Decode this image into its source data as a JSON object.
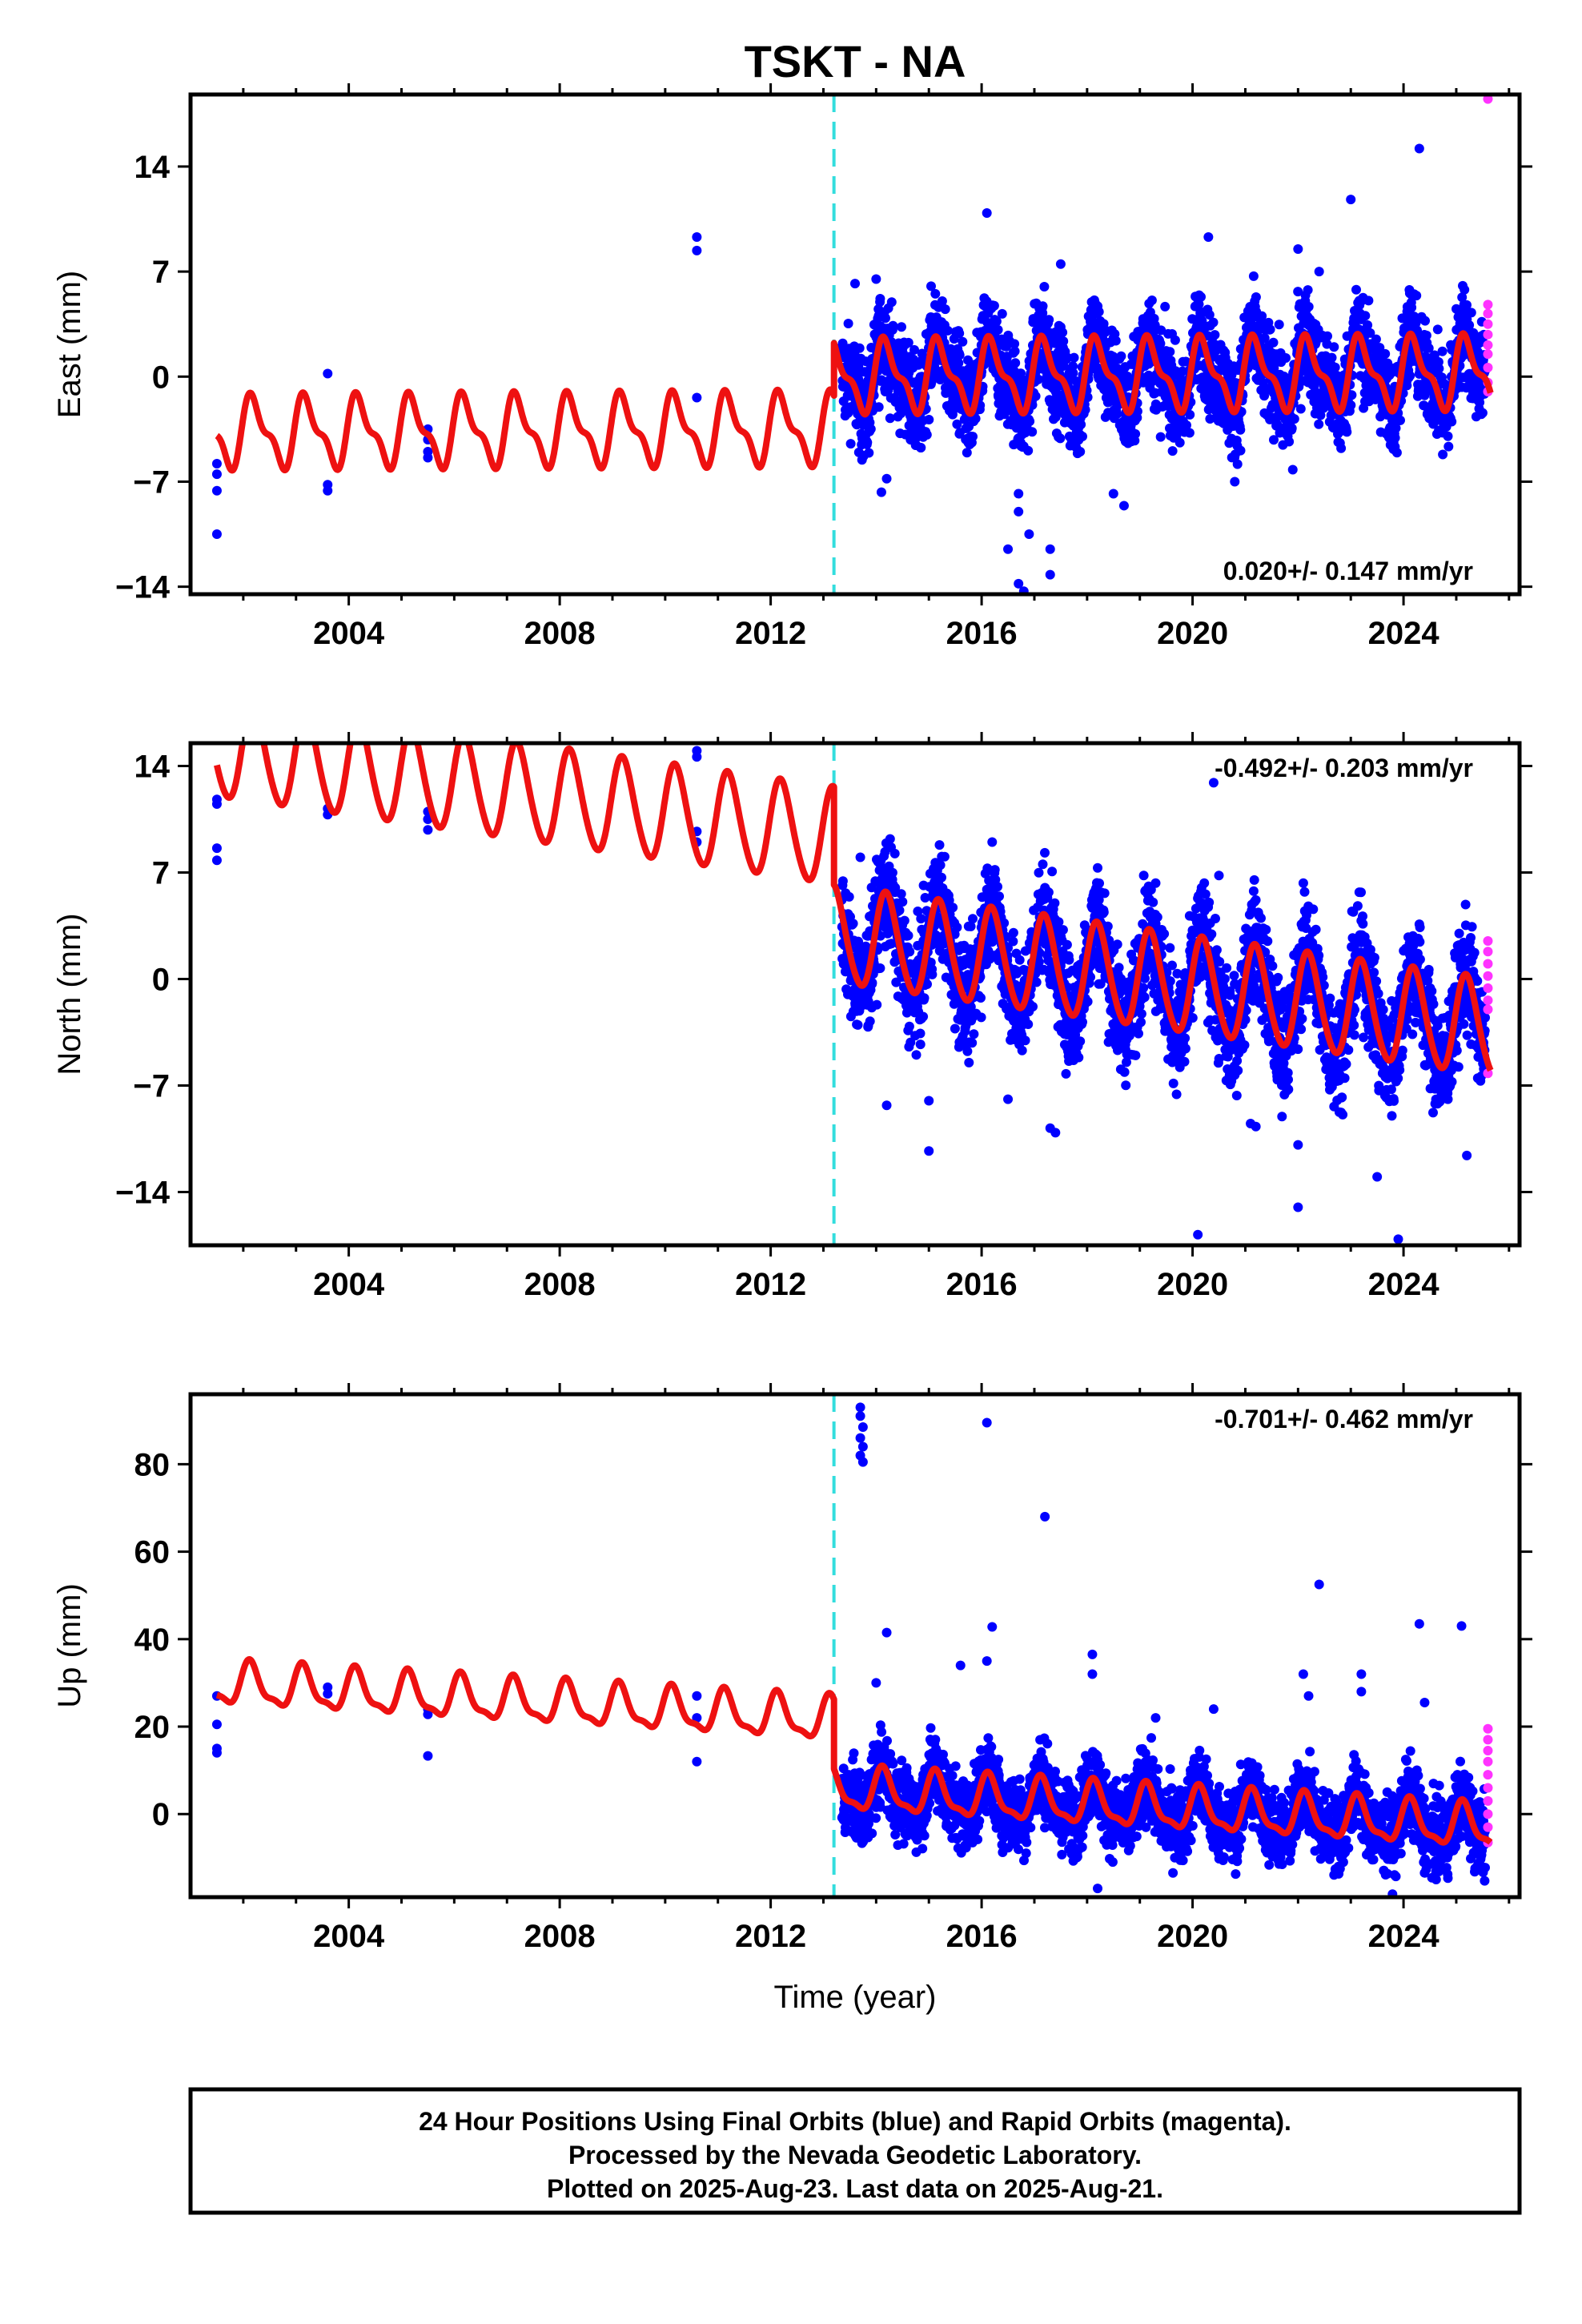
{
  "title": "TSKT - NA",
  "xlabel": "Time (year)",
  "footer": [
    "24 Hour Positions Using Final Orbits (blue) and Rapid Orbits (magenta).",
    "Processed by the Nevada Geodetic Laboratory.",
    "Plotted on 2025-Aug-23. Last data on 2025-Aug-21."
  ],
  "colors": {
    "final": "#0000ff",
    "rapid": "#ff33ff",
    "model": "#ee1111",
    "break": "#33dddd",
    "frame": "#000000"
  },
  "chart_data": [
    {
      "type": "scatter",
      "component": "East",
      "ylabel": "East (mm)",
      "rate_text": "0.020+/- 0.147 mm/yr",
      "rate_position": "bottom-right",
      "xlim": [
        2001.0,
        2026.2
      ],
      "ylim": [
        -14.5,
        18.8
      ],
      "xticks": [
        2004,
        2008,
        2012,
        2016,
        2020,
        2024
      ],
      "yticks": [
        -14,
        -7,
        0,
        7,
        14
      ],
      "break_epoch": 2013.2,
      "model": {
        "t_start": 2001.5,
        "t_end": 2025.65,
        "pre_offset": -3.5,
        "post_offset": 0.0,
        "trend_mm_per_yr": 0.02,
        "annual_sin": 2.0,
        "annual_cos": 0.6,
        "semiannual_sin": 0.8,
        "semiannual_cos": 0.4
      },
      "early_points": [
        [
          2001.5,
          -10.5
        ],
        [
          2001.5,
          -7.6
        ],
        [
          2001.5,
          -6.5
        ],
        [
          2001.5,
          -5.8
        ],
        [
          2003.6,
          0.2
        ],
        [
          2003.6,
          -7.2
        ],
        [
          2003.6,
          -7.6
        ],
        [
          2005.5,
          -3.5
        ],
        [
          2005.5,
          -4.2
        ],
        [
          2005.5,
          -5.0
        ],
        [
          2005.5,
          -5.4
        ],
        [
          2010.6,
          9.3
        ],
        [
          2010.6,
          8.4
        ],
        [
          2010.6,
          -1.4
        ]
      ],
      "dense": {
        "t_start": 2013.35,
        "t_end": 2025.55,
        "step": 0.0042,
        "scatter_sd": 1.6
      },
      "outliers": [
        [
          2013.6,
          6.2
        ],
        [
          2014.0,
          6.5
        ],
        [
          2014.1,
          -7.7
        ],
        [
          2014.2,
          -6.8
        ],
        [
          2016.1,
          10.9
        ],
        [
          2016.5,
          -11.5
        ],
        [
          2016.7,
          -13.8
        ],
        [
          2016.8,
          -14.3
        ],
        [
          2016.7,
          -9.0
        ],
        [
          2016.9,
          -10.5
        ],
        [
          2016.7,
          -7.8
        ],
        [
          2017.3,
          -11.5
        ],
        [
          2017.3,
          -13.2
        ],
        [
          2017.5,
          7.5
        ],
        [
          2018.7,
          -8.6
        ],
        [
          2018.5,
          -7.8
        ],
        [
          2020.3,
          9.3
        ],
        [
          2020.8,
          -7.0
        ],
        [
          2022.0,
          8.5
        ],
        [
          2022.4,
          7.0
        ],
        [
          2023.0,
          11.8
        ],
        [
          2024.3,
          15.2
        ],
        [
          2024.2,
          5.5
        ],
        [
          2021.9,
          -6.2
        ]
      ],
      "rapid_points": [
        [
          2025.6,
          18.5
        ],
        [
          2025.6,
          4.8
        ],
        [
          2025.6,
          4.2
        ],
        [
          2025.6,
          3.5
        ],
        [
          2025.6,
          2.8
        ],
        [
          2025.6,
          2.1
        ],
        [
          2025.6,
          1.5
        ],
        [
          2025.6,
          0.6
        ],
        [
          2025.6,
          -0.4
        ],
        [
          2025.6,
          -1.0
        ]
      ]
    },
    {
      "type": "scatter",
      "component": "North",
      "ylabel": "North (mm)",
      "rate_text": "-0.492+/- 0.203 mm/yr",
      "rate_position": "top-right",
      "xlim": [
        2001.0,
        2026.2
      ],
      "ylim": [
        -17.5,
        15.5
      ],
      "xticks": [
        2004,
        2008,
        2012,
        2016,
        2020,
        2024
      ],
      "yticks": [
        -14,
        -7,
        0,
        7,
        14
      ],
      "break_epoch": 2013.2,
      "model": {
        "t_start": 2001.5,
        "t_end": 2025.65,
        "pre_offset": 9.3,
        "post_offset": 2.85,
        "trend_mm_per_yr": -0.492,
        "annual_sin": 3.0,
        "annual_cos": 1.0,
        "semiannual_sin": 0.3,
        "semiannual_cos": 0.0
      },
      "early_points": [
        [
          2001.5,
          11.8
        ],
        [
          2001.5,
          11.5
        ],
        [
          2001.5,
          8.6
        ],
        [
          2001.5,
          7.8
        ],
        [
          2003.6,
          11.2
        ],
        [
          2003.6,
          10.8
        ],
        [
          2005.5,
          11.0
        ],
        [
          2005.5,
          10.5
        ],
        [
          2005.5,
          9.8
        ],
        [
          2010.6,
          15.0
        ],
        [
          2010.6,
          14.6
        ],
        [
          2010.6,
          9.7
        ],
        [
          2010.6,
          9.0
        ]
      ],
      "dense": {
        "t_start": 2013.35,
        "t_end": 2025.55,
        "step": 0.0042,
        "scatter_sd": 1.8
      },
      "outliers": [
        [
          2013.7,
          8.0
        ],
        [
          2014.2,
          -8.3
        ],
        [
          2015.0,
          -8.0
        ],
        [
          2015.0,
          -11.3
        ],
        [
          2016.5,
          -7.9
        ],
        [
          2017.3,
          -9.8
        ],
        [
          2017.4,
          -10.1
        ],
        [
          2020.1,
          -16.8
        ],
        [
          2020.4,
          12.9
        ],
        [
          2021.1,
          -9.5
        ],
        [
          2021.2,
          -9.7
        ],
        [
          2022.0,
          -10.9
        ],
        [
          2022.0,
          -15.0
        ],
        [
          2022.1,
          6.3
        ],
        [
          2023.5,
          -13.0
        ],
        [
          2023.9,
          -17.1
        ],
        [
          2024.6,
          -8.2
        ],
        [
          2025.2,
          -11.6
        ],
        [
          2024.3,
          3.6
        ],
        [
          2023.2,
          2.4
        ],
        [
          2016.2,
          9.0
        ],
        [
          2018.2,
          7.3
        ],
        [
          2019.3,
          6.3
        ],
        [
          2020.5,
          6.8
        ]
      ],
      "rapid_points": [
        [
          2025.6,
          2.5
        ],
        [
          2025.6,
          1.8
        ],
        [
          2025.6,
          1.0
        ],
        [
          2025.6,
          0.2
        ],
        [
          2025.6,
          -0.6
        ],
        [
          2025.6,
          -1.4
        ],
        [
          2025.6,
          -2.0
        ],
        [
          2025.6,
          -6.2
        ]
      ]
    },
    {
      "type": "scatter",
      "component": "Up",
      "ylabel": "Up (mm)",
      "rate_text": "-0.701+/- 0.462 mm/yr",
      "rate_position": "top-right",
      "xlim": [
        2001.0,
        2026.2
      ],
      "ylim": [
        -19.0,
        96.0
      ],
      "xticks": [
        2004,
        2008,
        2012,
        2016,
        2020,
        2024
      ],
      "yticks": [
        0,
        20,
        40,
        60,
        80
      ],
      "break_epoch": 2013.2,
      "model": {
        "t_start": 2001.5,
        "t_end": 2025.65,
        "pre_offset": 21.5,
        "post_offset": 5.6,
        "trend_mm_per_yr": -0.701,
        "annual_sin": 3.5,
        "annual_cos": 3.0,
        "semiannual_sin": 1.5,
        "semiannual_cos": 0.5
      },
      "early_points": [
        [
          2001.5,
          27.0
        ],
        [
          2001.5,
          20.5
        ],
        [
          2001.5,
          15.0
        ],
        [
          2001.5,
          14.0
        ],
        [
          2003.6,
          29.0
        ],
        [
          2003.6,
          27.5
        ],
        [
          2005.5,
          24.0
        ],
        [
          2005.5,
          22.8
        ],
        [
          2005.5,
          13.3
        ],
        [
          2010.6,
          27.0
        ],
        [
          2010.6,
          22.0
        ],
        [
          2010.6,
          12.0
        ]
      ],
      "dense": {
        "t_start": 2013.35,
        "t_end": 2025.55,
        "step": 0.0042,
        "scatter_sd": 4.2
      },
      "outliers": [
        [
          2013.7,
          93.0
        ],
        [
          2013.7,
          91.0
        ],
        [
          2013.75,
          88.5
        ],
        [
          2013.7,
          86.0
        ],
        [
          2013.75,
          84.0
        ],
        [
          2013.7,
          82.0
        ],
        [
          2013.75,
          80.5
        ],
        [
          2014.0,
          30.0
        ],
        [
          2014.2,
          41.5
        ],
        [
          2015.6,
          34.0
        ],
        [
          2016.1,
          89.5
        ],
        [
          2016.2,
          42.8
        ],
        [
          2016.1,
          35.0
        ],
        [
          2017.2,
          68.0
        ],
        [
          2018.1,
          36.5
        ],
        [
          2018.1,
          32.0
        ],
        [
          2018.2,
          -17.0
        ],
        [
          2022.1,
          32.0
        ],
        [
          2022.2,
          27.0
        ],
        [
          2022.4,
          52.5
        ],
        [
          2023.2,
          32.0
        ],
        [
          2023.2,
          28.0
        ],
        [
          2024.3,
          43.5
        ],
        [
          2024.4,
          25.5
        ],
        [
          2025.1,
          43.0
        ],
        [
          2020.4,
          24.0
        ],
        [
          2019.3,
          22.0
        ]
      ],
      "rapid_points": [
        [
          2025.6,
          19.5
        ],
        [
          2025.6,
          17.0
        ],
        [
          2025.6,
          14.5
        ],
        [
          2025.6,
          12.0
        ],
        [
          2025.6,
          9.0
        ],
        [
          2025.6,
          6.0
        ],
        [
          2025.6,
          3.0
        ],
        [
          2025.6,
          0.0
        ],
        [
          2025.6,
          -3.0
        ],
        [
          2025.6,
          -6.5
        ]
      ]
    }
  ]
}
